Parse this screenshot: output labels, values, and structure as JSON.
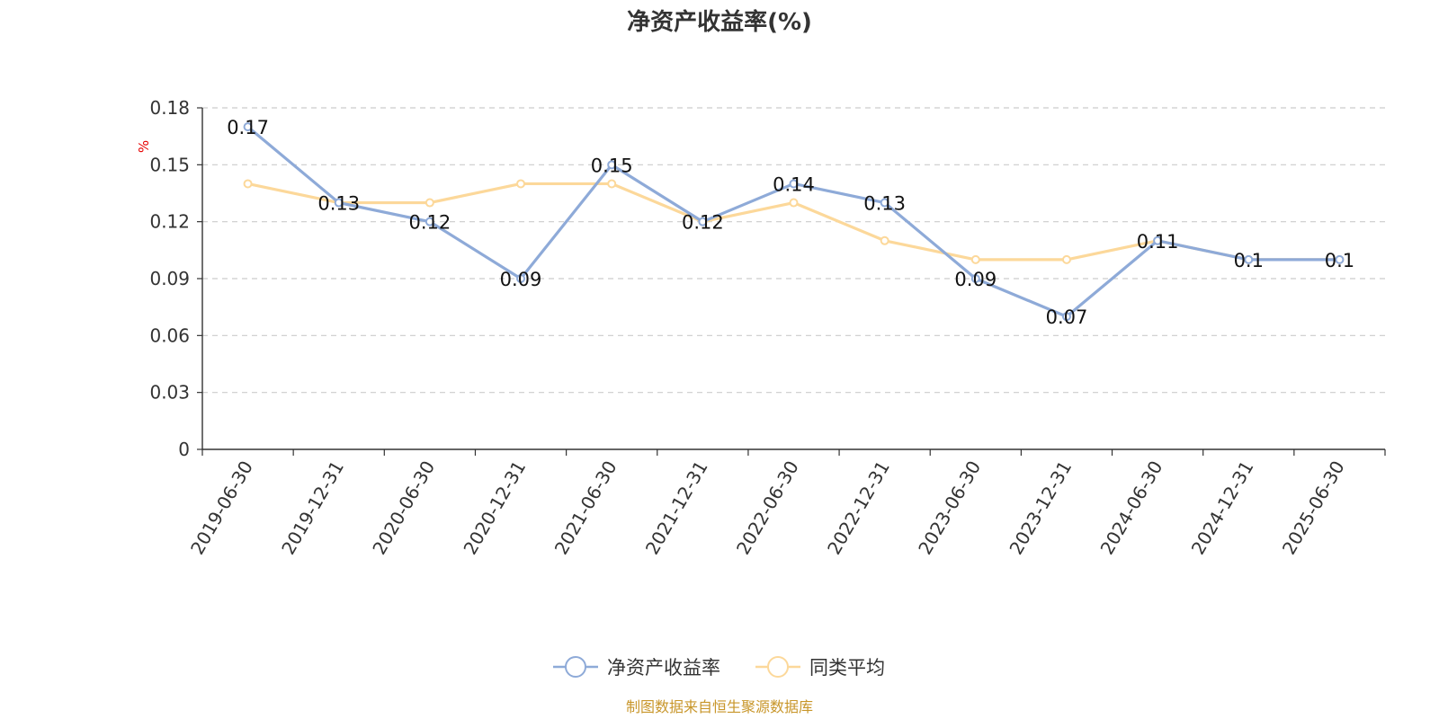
{
  "chart_data": {
    "type": "line",
    "title": "净资产收益率(%)",
    "ylabel": "%",
    "xlabel": "",
    "ylim": [
      0,
      0.18
    ],
    "yticks": [
      "0",
      "0.03",
      "0.06",
      "0.09",
      "0.12",
      "0.15",
      "0.18"
    ],
    "grid": true,
    "legend_position": "bottom",
    "categories": [
      "2019-06-30",
      "2019-12-31",
      "2020-06-30",
      "2020-12-31",
      "2021-06-30",
      "2021-12-31",
      "2022-06-30",
      "2022-12-31",
      "2023-06-30",
      "2023-12-31",
      "2024-06-30",
      "2024-12-31",
      "2025-06-30"
    ],
    "series": [
      {
        "name": "净资产收益率",
        "color": "#8eaad8",
        "values": [
          0.17,
          0.13,
          0.12,
          0.09,
          0.15,
          0.12,
          0.14,
          0.13,
          0.09,
          0.07,
          0.11,
          0.1,
          0.1
        ],
        "labels": [
          "0.17",
          "0.13",
          "0.12",
          "0.09",
          "0.15",
          "0.12",
          "0.14",
          "0.13",
          "0.09",
          "0.07",
          "0.11",
          "0.1",
          "0.1"
        ]
      },
      {
        "name": "同类平均",
        "color": "#fcd89a",
        "values": [
          0.14,
          0.13,
          0.13,
          0.14,
          0.14,
          0.12,
          0.13,
          0.11,
          0.1,
          0.1,
          0.11,
          0.1,
          0.1
        ]
      }
    ],
    "source": "制图数据来自恒生聚源数据库"
  }
}
